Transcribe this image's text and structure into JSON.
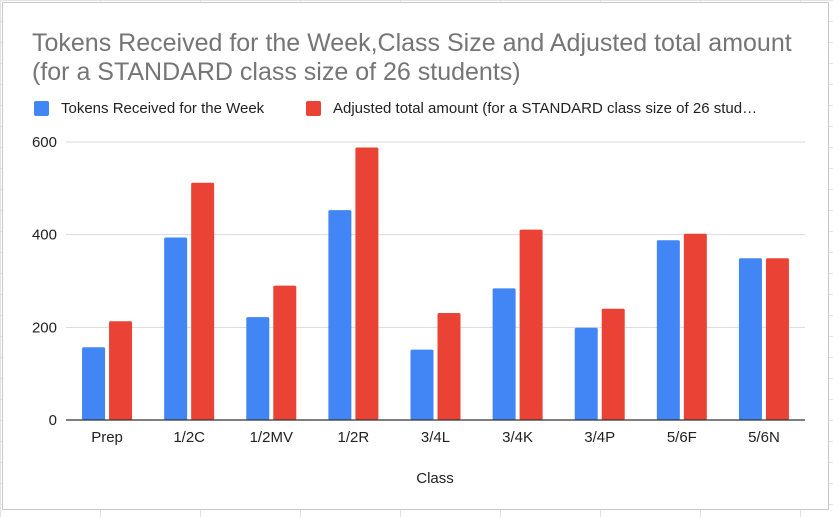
{
  "chart_data": {
    "type": "bar",
    "title": "Tokens Received for the Week,Class Size and Adjusted total amount (for a STANDARD class size of 26 students)",
    "xlabel": "Class",
    "ylabel": "",
    "ylim": [
      0,
      600
    ],
    "yticks": [
      0,
      200,
      400,
      600
    ],
    "grid": true,
    "legend_position": "top-left",
    "categories": [
      "Prep",
      "1/2C",
      "1/2MV",
      "1/2R",
      "3/4L",
      "3/4K",
      "3/4P",
      "5/6F",
      "5/6N"
    ],
    "series": [
      {
        "name": "Tokens Received for the Week",
        "legend_label": "Tokens Received for the Week",
        "color": "#4285f4",
        "values": [
          157,
          394,
          222,
          453,
          152,
          284,
          199,
          388,
          349
        ]
      },
      {
        "name": "Adjusted total amount (for a STANDARD class size of 26 students)",
        "legend_label": "Adjusted total amount (for a STANDARD class size of 26 stud…",
        "color": "#ea4335",
        "values": [
          213,
          512,
          290,
          588,
          231,
          411,
          240,
          402,
          349
        ]
      }
    ]
  }
}
